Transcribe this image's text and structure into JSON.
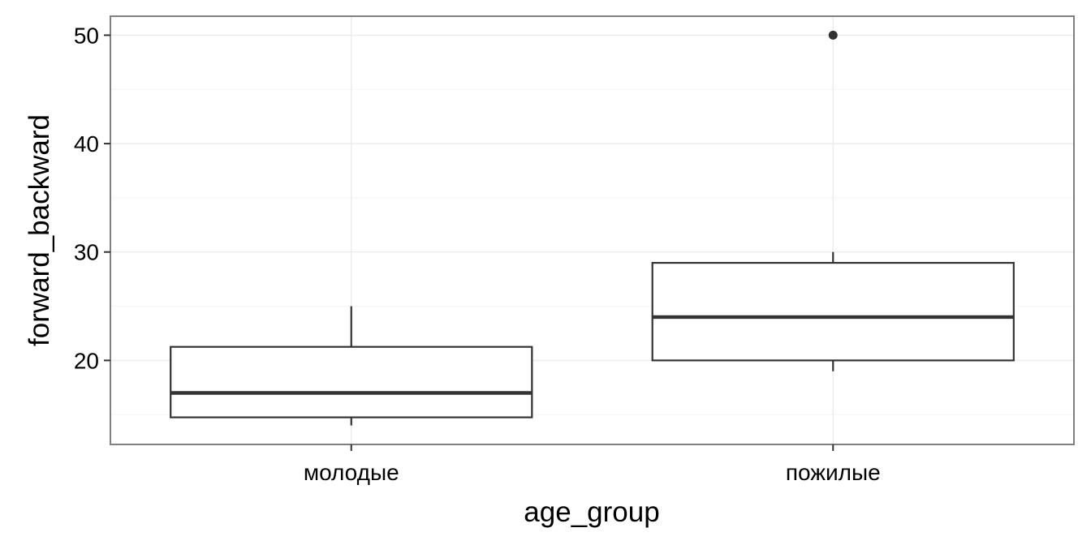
{
  "chart_data": {
    "type": "boxplot",
    "xlabel": "age_group",
    "ylabel": "forward_backward",
    "categories": [
      "молодые",
      "пожилые"
    ],
    "ylim": [
      12.25,
      51.75
    ],
    "yticks": [
      "20",
      "30",
      "40",
      "50"
    ],
    "grid": true,
    "boxes": [
      {
        "category": "молодые",
        "whisker_low": 14,
        "q1": 14.75,
        "median": 17,
        "q3": 21.25,
        "whisker_high": 25,
        "outliers": []
      },
      {
        "category": "пожилые",
        "whisker_low": 19,
        "q1": 20,
        "median": 24,
        "q3": 29,
        "whisker_high": 30,
        "outliers": [
          50
        ]
      }
    ],
    "colors": {
      "panel_border": "#7f7f7f",
      "grid_major": "#ebebeb",
      "grid_minor": "#f5f5f5",
      "box_stroke": "#333333",
      "box_fill": "#ffffff",
      "outlier": "#333333"
    }
  }
}
